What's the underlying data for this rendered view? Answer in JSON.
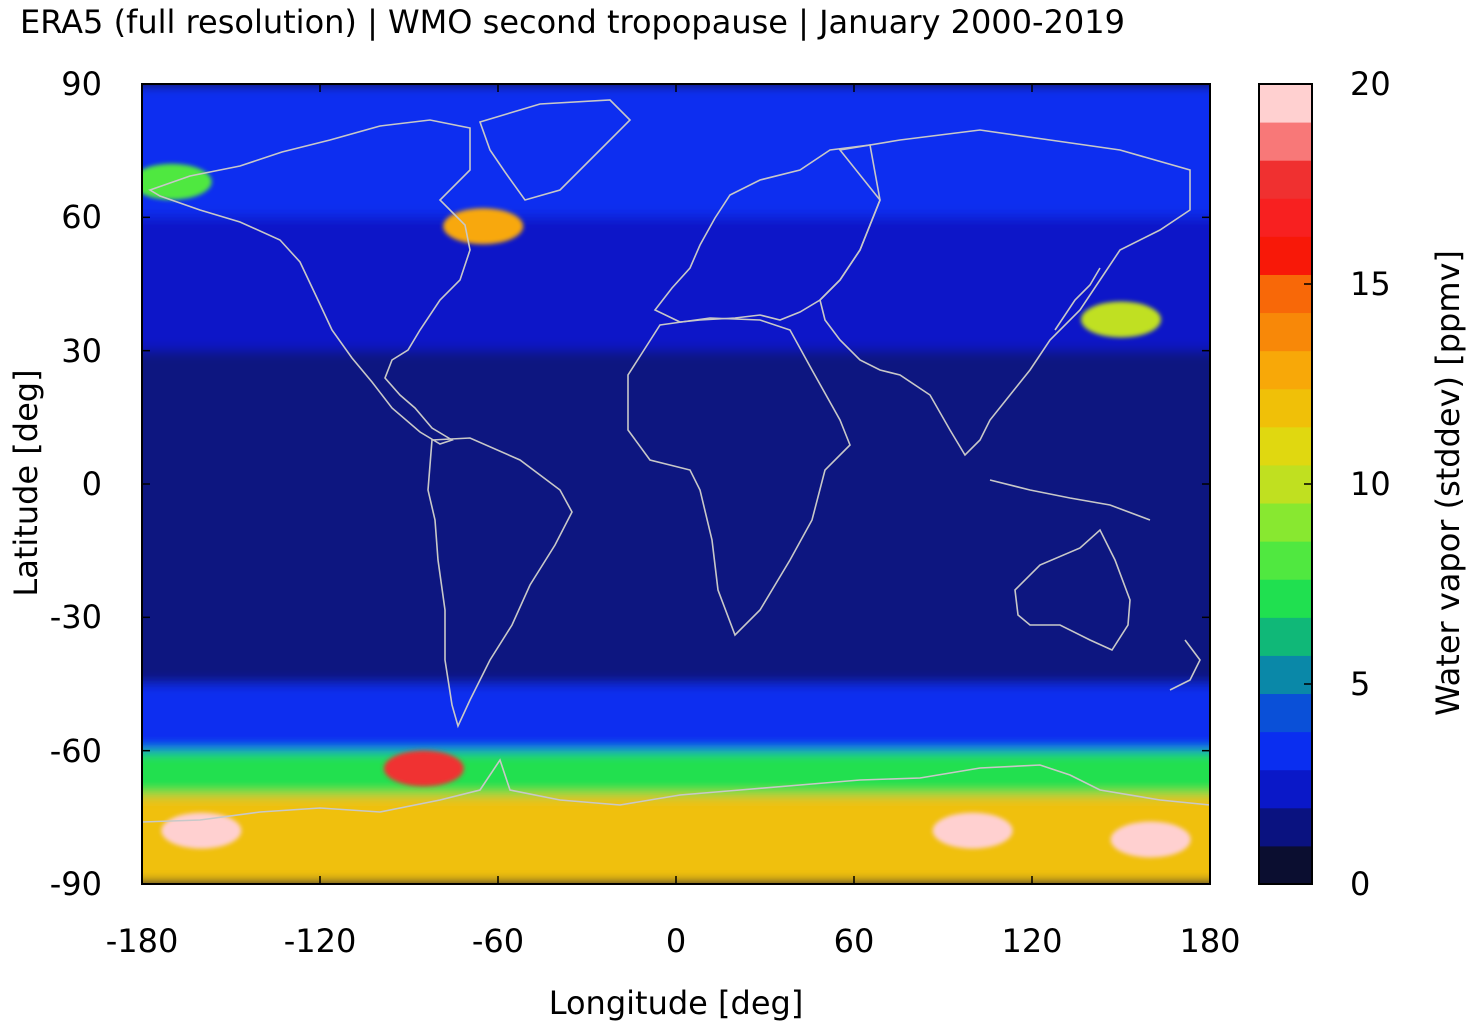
{
  "title": "ERA5 (full resolution) | WMO second tropopause | January 2000-2019",
  "x_axis": {
    "label": "Longitude [deg]",
    "ticks": [
      "-180",
      "-120",
      "-60",
      "0",
      "60",
      "120",
      "180"
    ],
    "range": [
      -180,
      180
    ]
  },
  "y_axis": {
    "label": "Latitude [deg]",
    "ticks": [
      "90",
      "60",
      "30",
      "0",
      "-30",
      "-60",
      "-90"
    ],
    "range": [
      -90,
      90
    ]
  },
  "colorbar": {
    "label": "Water vapor (stddev) [ppmv]",
    "ticks": [
      "20",
      "15",
      "10",
      "5",
      "0"
    ],
    "range": [
      0,
      20
    ],
    "colors": [
      "#0b0e30",
      "#0a1280",
      "#0a18c8",
      "#0a2ef0",
      "#0a50d8",
      "#0a88a8",
      "#10b878",
      "#20e050",
      "#50e840",
      "#88e830",
      "#c0e020",
      "#e0d810",
      "#f0c008",
      "#f8a808",
      "#f88808",
      "#f86808",
      "#f81808",
      "#f82020",
      "#f03030",
      "#f87878",
      "#ffd0d0"
    ]
  },
  "chart_data": {
    "type": "heatmap",
    "title": "ERA5 (full resolution) | WMO second tropopause | January 2000-2019",
    "xlabel": "Longitude [deg]",
    "ylabel": "Latitude [deg]",
    "xlim": [
      -180,
      180
    ],
    "ylim": [
      -90,
      90
    ],
    "colorbar_label": "Water vapor (stddev) [ppmv]",
    "colorbar_range": [
      0,
      20
    ],
    "latitude_bands": [
      {
        "lat_range": [
          60,
          90
        ],
        "typical_value": 3
      },
      {
        "lat_range": [
          30,
          60
        ],
        "typical_value": 2
      },
      {
        "lat_range": [
          -30,
          30
        ],
        "typical_value": 0.5
      },
      {
        "lat_range": [
          -45,
          -30
        ],
        "typical_value": 1
      },
      {
        "lat_range": [
          -60,
          -45
        ],
        "typical_value": 3
      },
      {
        "lat_range": [
          -70,
          -60
        ],
        "typical_value": 7
      },
      {
        "lat_range": [
          -90,
          -70
        ],
        "typical_value": 12
      }
    ],
    "hotspots": [
      {
        "lon": -65,
        "lat": 58,
        "value": 13
      },
      {
        "lon": 150,
        "lat": 37,
        "value": 10
      },
      {
        "lon": -170,
        "lat": 68,
        "value": 8
      },
      {
        "lon": -160,
        "lat": -78,
        "value": 20
      },
      {
        "lon": -85,
        "lat": -64,
        "value": 18
      },
      {
        "lon": 100,
        "lat": -78,
        "value": 20
      },
      {
        "lon": 160,
        "lat": -80,
        "value": 20
      }
    ]
  }
}
